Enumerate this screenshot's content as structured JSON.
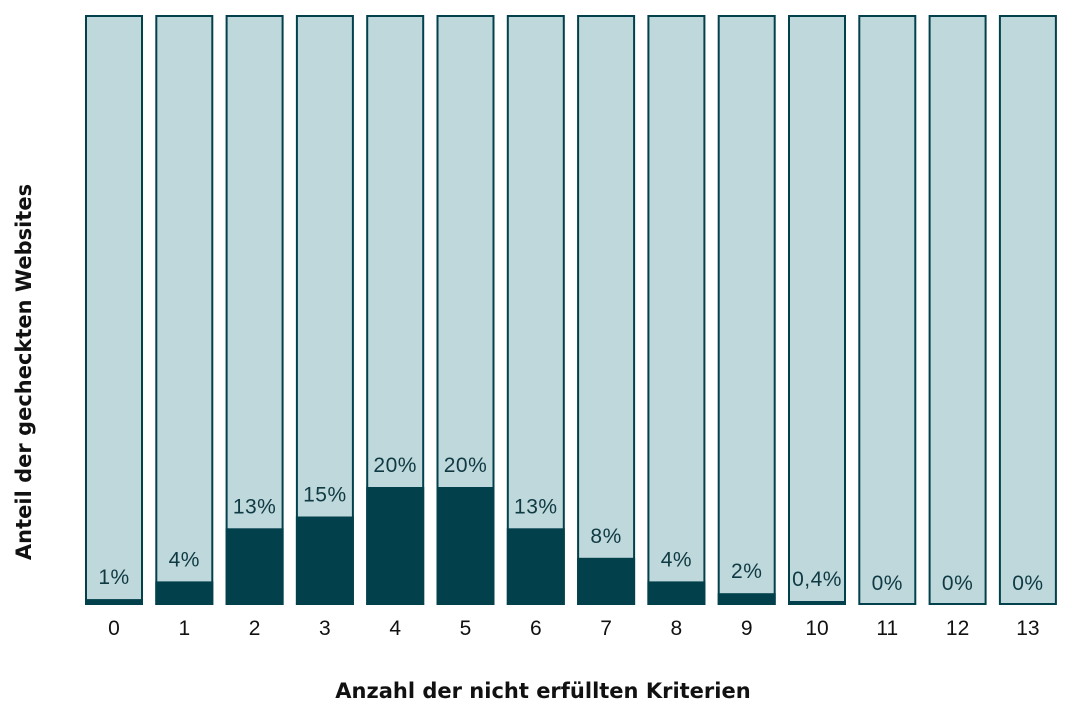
{
  "colors": {
    "background_bar": "#bed8db",
    "value_bar": "#02404b",
    "outline": "#02404b",
    "text": "#0f3a43"
  },
  "chart_data": {
    "type": "bar",
    "categories": [
      "0",
      "1",
      "2",
      "3",
      "4",
      "5",
      "6",
      "7",
      "8",
      "9",
      "10",
      "11",
      "12",
      "13"
    ],
    "values": [
      1,
      4,
      13,
      15,
      20,
      20,
      13,
      8,
      4,
      2,
      0.4,
      0,
      0,
      0
    ],
    "data_labels": [
      "1%",
      "4%",
      "13%",
      "15%",
      "20%",
      "20%",
      "13%",
      "8%",
      "4%",
      "2%",
      "0,4%",
      "0%",
      "0%",
      "0%"
    ],
    "xlabel": "Anzahl der nicht erfüllten Kriterien",
    "ylabel": "Anteil der gecheckten Websites",
    "ylim": [
      0,
      100
    ],
    "grid": false,
    "legend": "none"
  }
}
